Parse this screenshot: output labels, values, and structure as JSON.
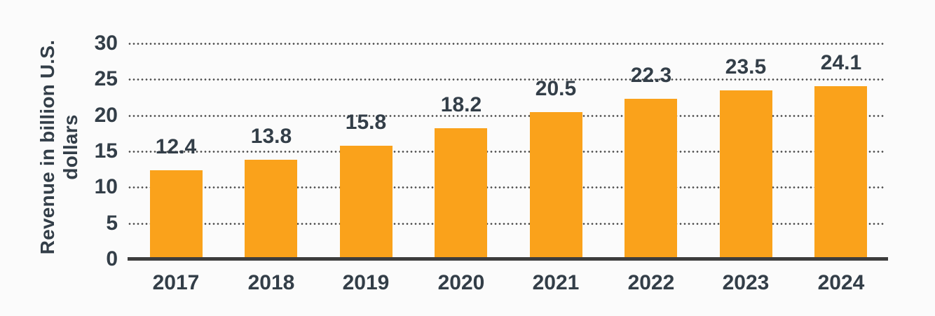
{
  "chart_data": {
    "type": "bar",
    "title": "",
    "categories": [
      "2017",
      "2018",
      "2019",
      "2020",
      "2021",
      "2022",
      "2023",
      "2024"
    ],
    "values": [
      12.4,
      13.8,
      15.8,
      18.2,
      20.5,
      22.3,
      23.5,
      24.1
    ],
    "value_labels": [
      "12.4",
      "13.8",
      "15.8",
      "18.2",
      "20.5",
      "22.3",
      "23.5",
      "24.1"
    ],
    "xlabel": "",
    "ylabel": "Revenue in billion U.S. dollars",
    "ylabel_lines": [
      "Revenue in billion U.S.",
      "dollars"
    ],
    "yticks": [
      0,
      5,
      10,
      15,
      20,
      25,
      30
    ],
    "ylim": [
      0,
      30
    ],
    "grid": "dotted-horizontal",
    "legend": "none",
    "colors": {
      "bar": "#FAA21B",
      "text": "#333E48",
      "gridline": "#4C4C4C",
      "axis_line": "#3D3D3D",
      "background": "#FBFBFB"
    }
  }
}
